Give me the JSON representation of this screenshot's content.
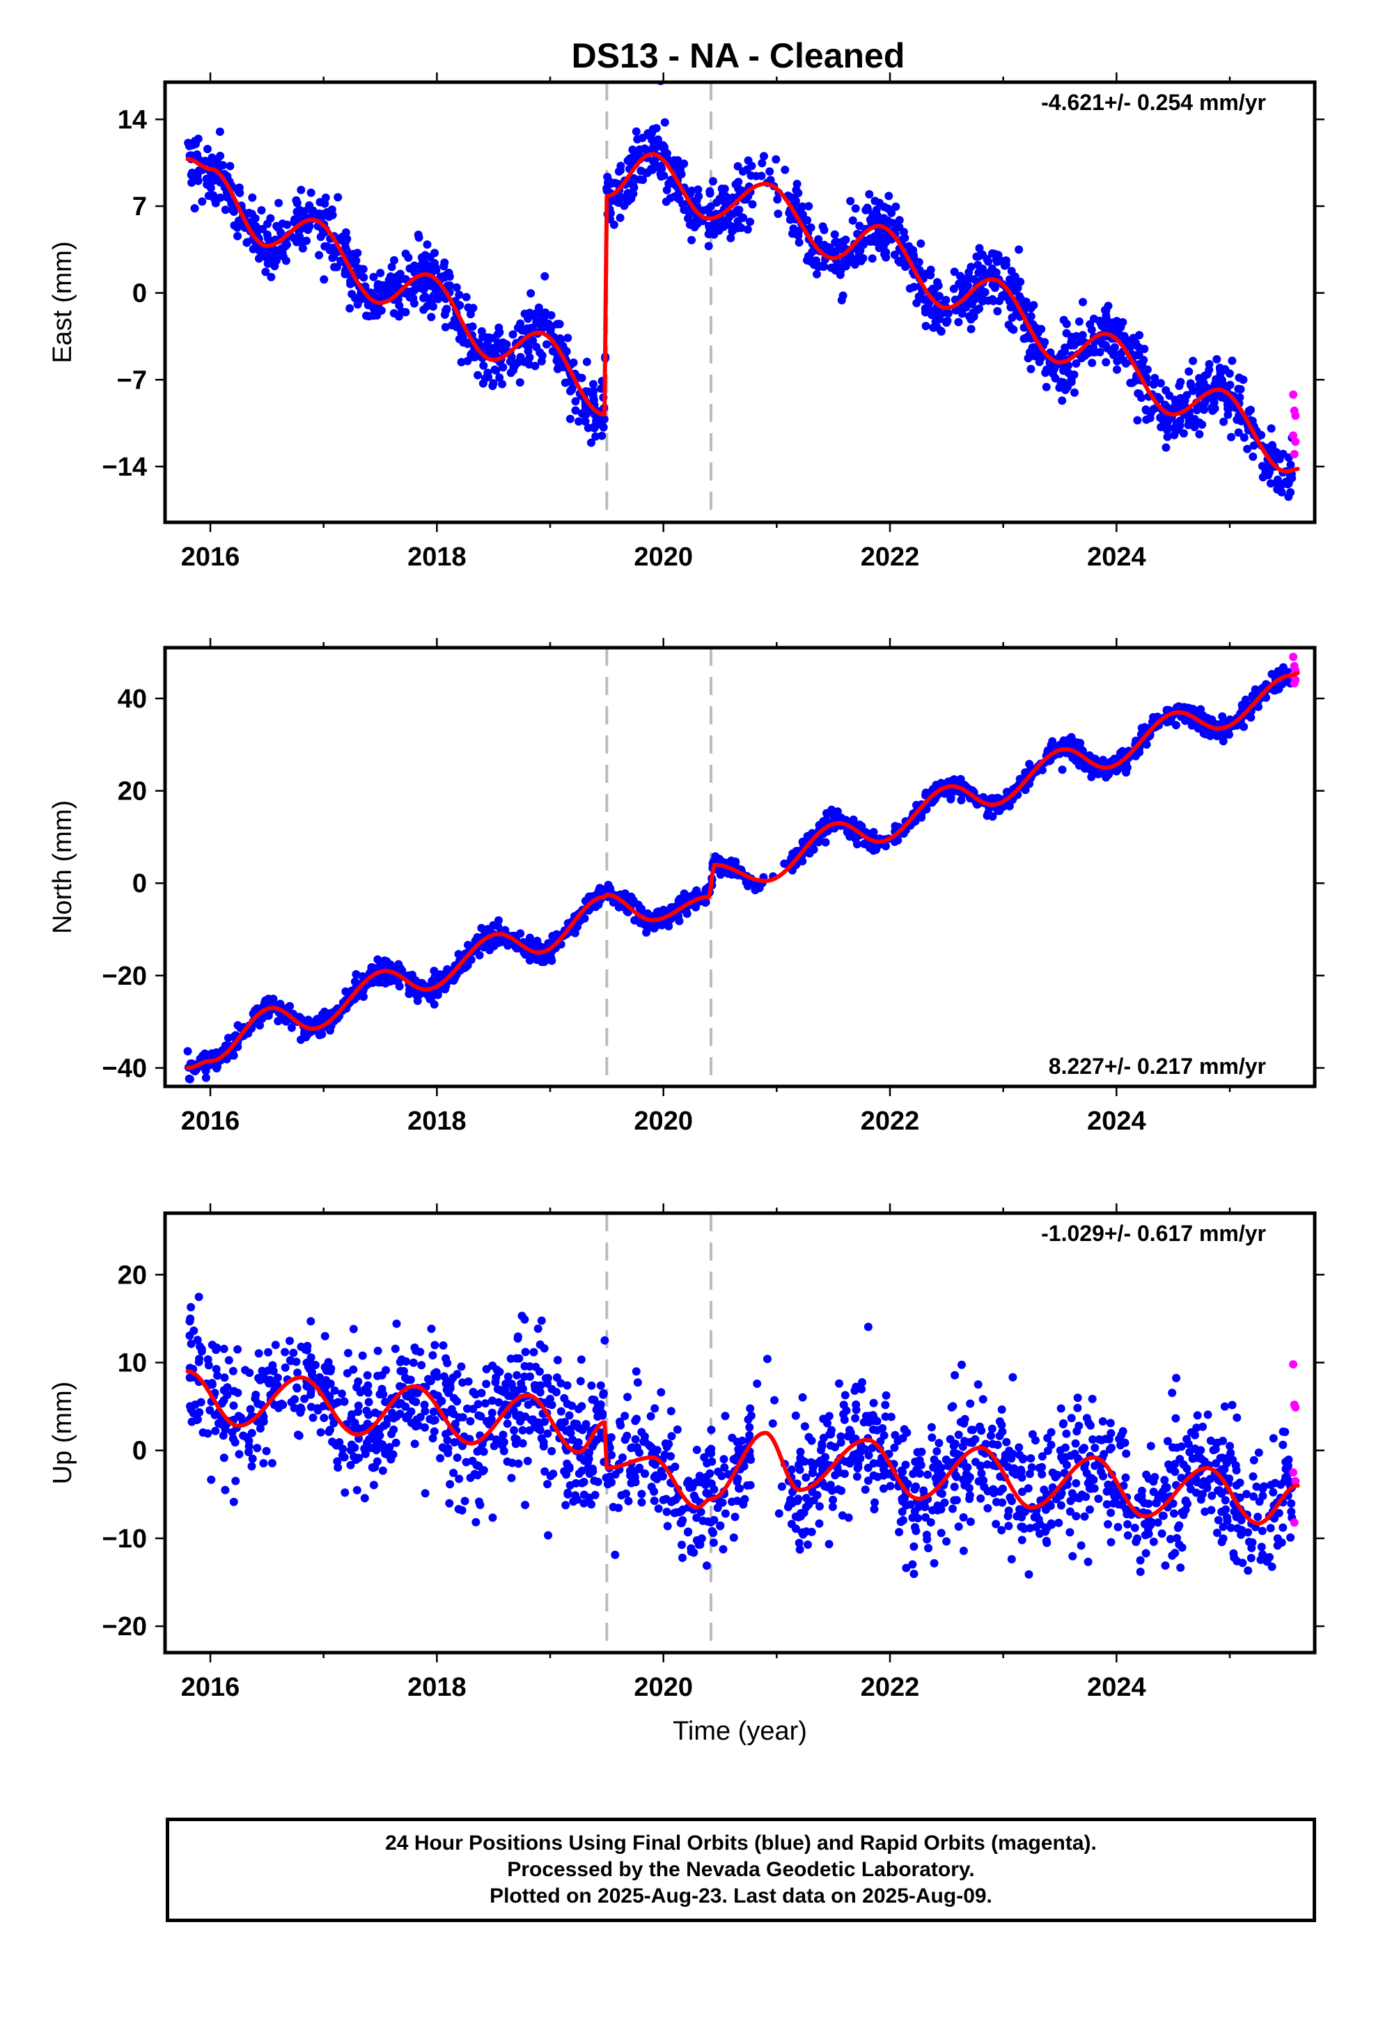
{
  "title": "DS13  - NA - Cleaned",
  "footer": {
    "line1": "24 Hour Positions Using Final Orbits (blue) and Rapid Orbits (magenta).",
    "line2": "Processed by the Nevada Geodetic Laboratory.",
    "line3": "Plotted on 2025-Aug-23. Last data on 2025-Aug-09."
  },
  "colors": {
    "final": "#0000ff",
    "rapid": "#ff00ff",
    "model": "#ff0000",
    "breaks": "#bbbbbb"
  },
  "chart_data": [
    {
      "type": "scatter",
      "ylabel": "East (mm)",
      "xlabel": "",
      "xlim": [
        2015.6,
        2025.75
      ],
      "ylim": [
        -18.5,
        17
      ],
      "xticks": [
        2016,
        2018,
        2020,
        2022,
        2024
      ],
      "yticks": [
        14,
        7,
        0,
        -7,
        -14
      ],
      "rate_text": "-4.621+/- 0.254 mm/yr",
      "rate_position": "top-right",
      "breaks": [
        2019.5,
        2020.42
      ],
      "model_knots": [
        [
          2015.8,
          10.8
        ],
        [
          2016.0,
          10.0
        ],
        [
          2016.5,
          3.8
        ],
        [
          2016.9,
          5.9
        ],
        [
          2017.5,
          -0.8
        ],
        [
          2017.9,
          1.5
        ],
        [
          2018.5,
          -5.4
        ],
        [
          2018.9,
          -3.2
        ],
        [
          2019.48,
          -9.8
        ],
        [
          2019.5,
          7.8
        ],
        [
          2019.9,
          11.2
        ],
        [
          2020.4,
          6.0
        ],
        [
          2020.9,
          8.8
        ],
        [
          2021.5,
          2.8
        ],
        [
          2021.9,
          5.4
        ],
        [
          2022.5,
          -1.2
        ],
        [
          2022.9,
          1.1
        ],
        [
          2023.5,
          -5.6
        ],
        [
          2023.9,
          -3.3
        ],
        [
          2024.5,
          -9.8
        ],
        [
          2024.9,
          -7.8
        ],
        [
          2025.5,
          -14.4
        ],
        [
          2025.6,
          -14.2
        ]
      ],
      "series": [
        {
          "name": "Final Orbits",
          "color": "#0000ff",
          "scatter_sd": 1.3,
          "count": 1900
        },
        {
          "name": "Rapid Orbits",
          "color": "#ff00ff",
          "points": [
            [
              2025.56,
              -8.2
            ],
            [
              2025.57,
              -9.5
            ],
            [
              2025.58,
              -9.9
            ],
            [
              2025.56,
              -11.5
            ],
            [
              2025.58,
              -12.0
            ],
            [
              2025.57,
              -13.0
            ]
          ]
        }
      ]
    },
    {
      "type": "scatter",
      "ylabel": "North (mm)",
      "xlabel": "",
      "xlim": [
        2015.6,
        2025.75
      ],
      "ylim": [
        -44,
        51
      ],
      "xticks": [
        2016,
        2018,
        2020,
        2022,
        2024
      ],
      "yticks": [
        40,
        20,
        0,
        -20,
        -40
      ],
      "rate_text": "8.227+/- 0.217 mm/yr",
      "rate_position": "bottom-right",
      "breaks": [
        2019.5,
        2020.42
      ],
      "model_knots": [
        [
          2015.8,
          -40.0
        ],
        [
          2016.0,
          -38.5
        ],
        [
          2016.55,
          -27.0
        ],
        [
          2016.9,
          -31.5
        ],
        [
          2017.55,
          -19.0
        ],
        [
          2017.9,
          -23.0
        ],
        [
          2018.55,
          -11.0
        ],
        [
          2018.9,
          -15.0
        ],
        [
          2019.48,
          -3.0
        ],
        [
          2019.5,
          -2.5
        ],
        [
          2019.9,
          -8.0
        ],
        [
          2020.4,
          -3.0
        ],
        [
          2020.45,
          4.0
        ],
        [
          2020.9,
          0.5
        ],
        [
          2021.55,
          13.0
        ],
        [
          2021.9,
          9.0
        ],
        [
          2022.55,
          21.0
        ],
        [
          2022.9,
          17.0
        ],
        [
          2023.55,
          29.0
        ],
        [
          2023.9,
          25.0
        ],
        [
          2024.55,
          37.0
        ],
        [
          2024.9,
          33.5
        ],
        [
          2025.55,
          45.0
        ],
        [
          2025.6,
          45.5
        ]
      ],
      "series": [
        {
          "name": "Final Orbits",
          "color": "#0000ff",
          "scatter_sd": 1.1,
          "count": 1900
        },
        {
          "name": "Rapid Orbits",
          "color": "#ff00ff",
          "points": [
            [
              2025.56,
              49.0
            ],
            [
              2025.57,
              47.0
            ],
            [
              2025.58,
              46.0
            ],
            [
              2025.56,
              45.0
            ],
            [
              2025.58,
              44.0
            ],
            [
              2025.57,
              43.3
            ]
          ]
        }
      ]
    },
    {
      "type": "scatter",
      "ylabel": "Up (mm)",
      "xlabel": "Time (year)",
      "xlim": [
        2015.6,
        2025.75
      ],
      "ylim": [
        -23,
        27
      ],
      "xticks": [
        2016,
        2018,
        2020,
        2022,
        2024
      ],
      "yticks": [
        20,
        10,
        0,
        -10,
        -20
      ],
      "rate_text": "-1.029+/- 0.617 mm/yr",
      "rate_position": "top-right",
      "breaks": [
        2019.5,
        2020.42
      ],
      "model_knots": [
        [
          2015.8,
          9.0
        ],
        [
          2016.25,
          2.8
        ],
        [
          2016.8,
          8.3
        ],
        [
          2017.3,
          1.8
        ],
        [
          2017.8,
          7.3
        ],
        [
          2018.3,
          0.8
        ],
        [
          2018.8,
          6.3
        ],
        [
          2019.25,
          -0.2
        ],
        [
          2019.48,
          3.2
        ],
        [
          2019.5,
          -2.0
        ],
        [
          2019.9,
          -0.8
        ],
        [
          2020.3,
          -6.5
        ],
        [
          2020.42,
          -5.5
        ],
        [
          2020.9,
          2.0
        ],
        [
          2021.2,
          -4.5
        ],
        [
          2021.8,
          1.2
        ],
        [
          2022.25,
          -5.5
        ],
        [
          2022.8,
          0.3
        ],
        [
          2023.25,
          -6.5
        ],
        [
          2023.8,
          -0.8
        ],
        [
          2024.25,
          -7.5
        ],
        [
          2024.8,
          -2.0
        ],
        [
          2025.25,
          -8.3
        ],
        [
          2025.6,
          -4.0
        ]
      ],
      "series": [
        {
          "name": "Final Orbits",
          "color": "#0000ff",
          "scatter_sd": 3.8,
          "count": 1800
        },
        {
          "name": "Rapid Orbits",
          "color": "#ff00ff",
          "points": [
            [
              2025.56,
              9.8
            ],
            [
              2025.57,
              5.2
            ],
            [
              2025.58,
              4.9
            ],
            [
              2025.56,
              -2.5
            ],
            [
              2025.58,
              -3.5
            ],
            [
              2025.57,
              -8.2
            ]
          ]
        }
      ]
    }
  ]
}
